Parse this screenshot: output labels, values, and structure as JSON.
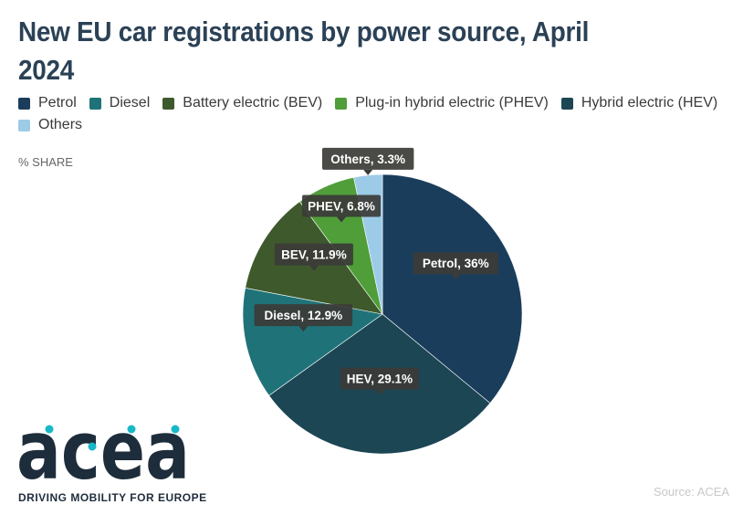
{
  "chart_data": {
    "type": "pie",
    "title": "New EU car registrations by power source, April 2024",
    "unit_label": "% SHARE",
    "source": "Source: ACEA",
    "legend_position": "top-left",
    "slices": [
      {
        "name": "Petrol",
        "value": 36,
        "label": "Petrol, 36%",
        "color": "#1b3d5c"
      },
      {
        "name": "Hybrid electric (HEV)",
        "value": 29.1,
        "label": "HEV, 29.1%",
        "color": "#1c4654"
      },
      {
        "name": "Diesel",
        "value": 12.9,
        "label": "Diesel, 12.9%",
        "color": "#1f7378"
      },
      {
        "name": "Battery electric (BEV)",
        "value": 11.9,
        "label": "BEV, 11.9%",
        "color": "#3e5a2d"
      },
      {
        "name": "Plug-in hybrid electric (PHEV)",
        "value": 6.8,
        "label": "PHEV, 6.8%",
        "color": "#4f9e3a"
      },
      {
        "name": "Others",
        "value": 3.3,
        "label": "Others, 3.3%",
        "color": "#9ccbe8"
      }
    ],
    "legend": [
      {
        "name": "Petrol",
        "color": "#1b3d5c"
      },
      {
        "name": "Diesel",
        "color": "#1f7378"
      },
      {
        "name": "Battery electric (BEV)",
        "color": "#3e5a2d"
      },
      {
        "name": "Plug-in hybrid electric (PHEV)",
        "color": "#4f9e3a"
      },
      {
        "name": "Hybrid electric (HEV)",
        "color": "#1c4654"
      },
      {
        "name": "Others",
        "color": "#9ccbe8"
      }
    ]
  },
  "logo": {
    "wordmark": "acea",
    "tagline": "DRIVING MOBILITY FOR EUROPE",
    "color": "#1e2d3b",
    "accent_color": "#18b8c8"
  }
}
